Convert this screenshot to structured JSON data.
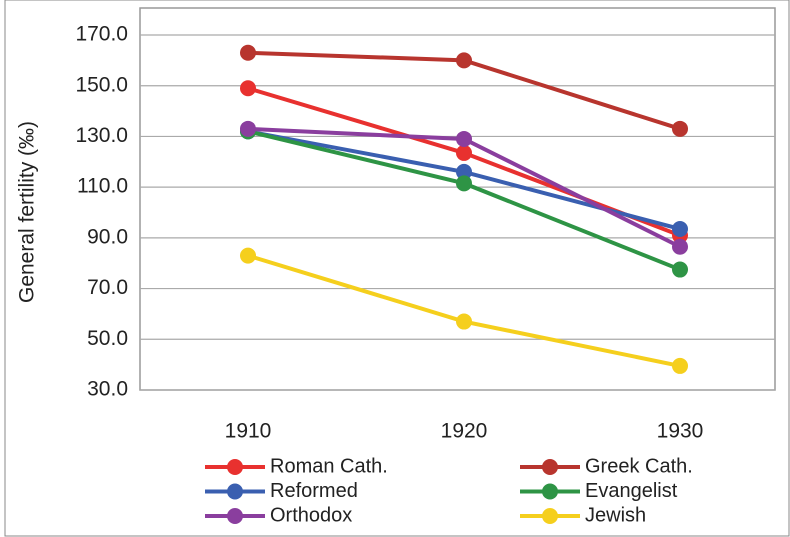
{
  "chart_data": {
    "type": "line",
    "y_label": "General fertility (‰)",
    "categories": [
      "1910",
      "1920",
      "1930"
    ],
    "ylim": [
      30,
      170
    ],
    "yticks": [
      {
        "value": 30,
        "label": "30.0"
      },
      {
        "value": 50,
        "label": "50.0"
      },
      {
        "value": 70,
        "label": "70.0"
      },
      {
        "value": 90,
        "label": "90.0"
      },
      {
        "value": 110,
        "label": "110.0"
      },
      {
        "value": 130,
        "label": "130.0"
      },
      {
        "value": 150,
        "label": "150.0"
      },
      {
        "value": 170,
        "label": "170.0"
      }
    ],
    "grid": true,
    "series": [
      {
        "name": "Roman Cath.",
        "color": "#e8312f",
        "values": [
          149,
          123.5,
          91
        ]
      },
      {
        "name": "Greek Cath.",
        "color": "#b8352e",
        "values": [
          163,
          160,
          133
        ]
      },
      {
        "name": "Reformed",
        "color": "#3a5fb0",
        "values": [
          132,
          116,
          93.5
        ]
      },
      {
        "name": "Evangelist",
        "color": "#2e9445",
        "values": [
          132,
          111.5,
          77.5
        ]
      },
      {
        "name": "Orthodox",
        "color": "#8a3e9e",
        "values": [
          133,
          129,
          86.5
        ]
      },
      {
        "name": "Jewish",
        "color": "#f5cf1d",
        "values": [
          83,
          57,
          39.5
        ]
      }
    ]
  }
}
